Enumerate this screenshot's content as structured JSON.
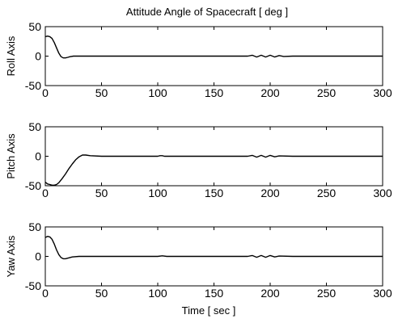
{
  "figure": {
    "title": "Attitude Angle of Spacecraft [ deg ]",
    "xlabel": "Time [ sec ]"
  },
  "chart_data": [
    {
      "type": "line",
      "ylabel": "Roll Axis",
      "xlim": [
        0,
        300
      ],
      "ylim": [
        -50,
        50
      ],
      "xticks": [
        0,
        50,
        100,
        150,
        200,
        250,
        300
      ],
      "yticks": [
        -50,
        0,
        50
      ],
      "grid": false,
      "series": [
        {
          "x": [
            0,
            2,
            4,
            6,
            8,
            10,
            12,
            14,
            16,
            18,
            20,
            22,
            25,
            30,
            40,
            60,
            100,
            150,
            180,
            184,
            188,
            192,
            196,
            200,
            204,
            208,
            212,
            220,
            260,
            300
          ],
          "y": [
            33,
            34,
            33,
            30,
            23,
            14,
            5,
            -1,
            -3,
            -3,
            -2,
            -1,
            0,
            0,
            0,
            0,
            0,
            0,
            0,
            1.5,
            -1.5,
            1.5,
            -1.5,
            1.5,
            -1.5,
            1,
            -0.5,
            0,
            0,
            0
          ]
        }
      ]
    },
    {
      "type": "line",
      "ylabel": "Pitch Axis",
      "xlim": [
        0,
        300
      ],
      "ylim": [
        -50,
        50
      ],
      "xticks": [
        0,
        50,
        100,
        150,
        200,
        250,
        300
      ],
      "yticks": [
        -50,
        0,
        50
      ],
      "grid": false,
      "series": [
        {
          "x": [
            0,
            2,
            4,
            6,
            8,
            10,
            12,
            15,
            18,
            21,
            24,
            27,
            30,
            33,
            36,
            40,
            50,
            100,
            102,
            104,
            106,
            150,
            180,
            184,
            188,
            192,
            196,
            200,
            204,
            208,
            220,
            260,
            300
          ],
          "y": [
            -44,
            -47,
            -48,
            -49,
            -49,
            -48,
            -45,
            -38,
            -30,
            -21,
            -13,
            -6,
            -1,
            2,
            2,
            1,
            0,
            0,
            1,
            1,
            0,
            0,
            0,
            1.5,
            -1.5,
            1.5,
            -1.5,
            1.5,
            -1,
            0.5,
            0,
            0,
            0
          ]
        }
      ]
    },
    {
      "type": "line",
      "ylabel": "Yaw Axis",
      "xlim": [
        0,
        300
      ],
      "ylim": [
        -50,
        50
      ],
      "xticks": [
        0,
        50,
        100,
        150,
        200,
        250,
        300
      ],
      "yticks": [
        -50,
        0,
        50
      ],
      "grid": false,
      "series": [
        {
          "x": [
            0,
            2,
            4,
            6,
            8,
            10,
            12,
            14,
            16,
            18,
            20,
            24,
            30,
            40,
            60,
            100,
            104,
            108,
            150,
            180,
            184,
            188,
            192,
            196,
            200,
            204,
            208,
            220,
            260,
            300
          ],
          "y": [
            32,
            34,
            33,
            29,
            21,
            11,
            3,
            -2,
            -4,
            -4,
            -3,
            -1,
            0,
            0,
            0,
            0,
            1,
            0,
            0,
            0,
            1.5,
            -1.5,
            1.5,
            -1.5,
            1.5,
            -1,
            0.5,
            0,
            0,
            0
          ]
        }
      ]
    }
  ]
}
